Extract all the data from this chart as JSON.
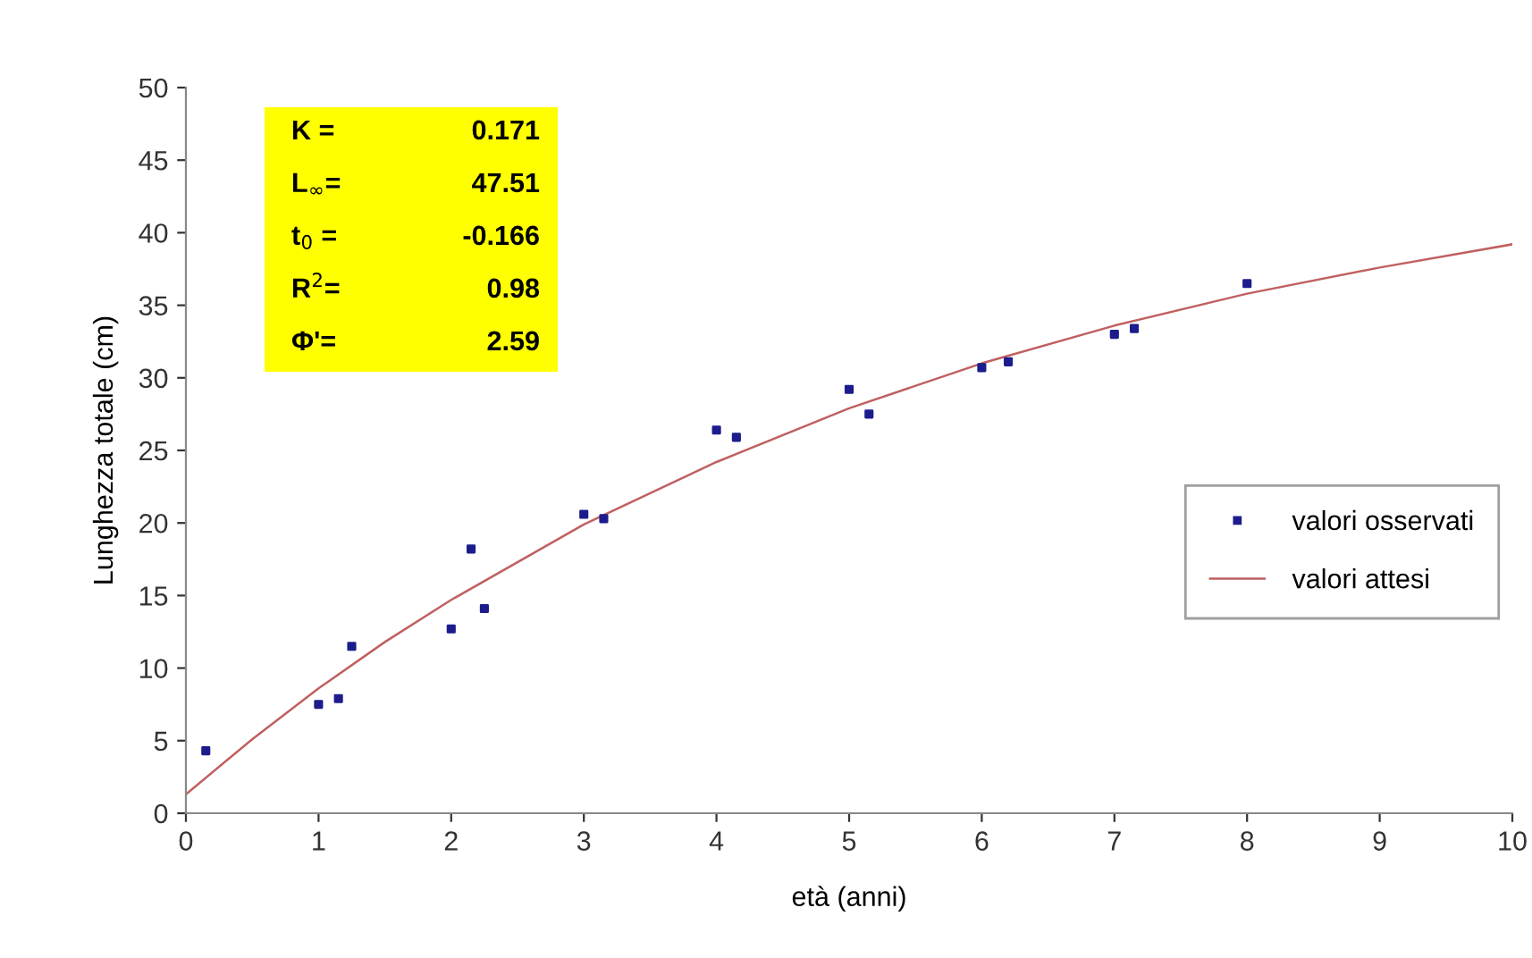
{
  "chart_data": {
    "type": "scatter",
    "xlabel": "età (anni)",
    "ylabel": "Lunghezza totale (cm)",
    "xlim": [
      0,
      10
    ],
    "ylim": [
      0,
      50
    ],
    "xticks": [
      0,
      1,
      2,
      3,
      4,
      5,
      6,
      7,
      8,
      9,
      10
    ],
    "yticks": [
      0,
      5,
      10,
      15,
      20,
      25,
      30,
      35,
      40,
      45,
      50
    ],
    "grid": false,
    "legend": "right",
    "series": [
      {
        "name": "valori osservati",
        "marker": "square",
        "color": "#1c1c8c",
        "x": [
          0.15,
          1,
          1.15,
          1.25,
          2,
          2.15,
          2.25,
          3,
          3.15,
          4,
          4.15,
          5,
          5.15,
          6,
          6.2,
          7,
          7.15,
          8
        ],
        "values": [
          4.3,
          7.5,
          7.9,
          11.5,
          12.7,
          18.2,
          14.1,
          20.6,
          20.3,
          26.4,
          25.9,
          29.2,
          27.5,
          30.7,
          31.1,
          33,
          33.4,
          36.5
        ]
      },
      {
        "name": "valori attesi",
        "type": "line",
        "marker": "none",
        "line_style": "solid",
        "color": "#c06060",
        "x": [
          0,
          0.5,
          1,
          1.5,
          2,
          3,
          4,
          5,
          6,
          7,
          8,
          9,
          10
        ],
        "values": [
          1.3,
          5.1,
          8.6,
          11.8,
          14.7,
          19.9,
          24.2,
          27.9,
          31.0,
          33.6,
          35.8,
          37.6,
          39.2
        ]
      }
    ],
    "annotations": [
      "K =",
      "0.171",
      "L$_{∞}$=",
      "47.51",
      "t$_{0}$ =",
      "-0.166",
      "R$^{2}$=",
      "0.98",
      "Φ'=",
      "2.59"
    ]
  }
}
